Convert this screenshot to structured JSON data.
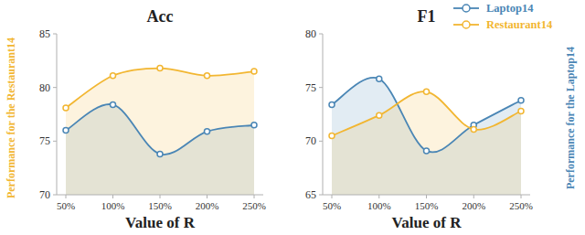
{
  "chart_data": [
    {
      "type": "line",
      "title": "Acc",
      "x_label": "Value of R",
      "y_label": "Performance for the Restaurant14",
      "categories": [
        "50%",
        "100%",
        "150%",
        "200%",
        "250%"
      ],
      "series": [
        {
          "name": "Laptop14",
          "color": "#4a86b5",
          "marker": "circle",
          "values": [
            76.0,
            78.4,
            73.8,
            75.9,
            76.5
          ]
        },
        {
          "name": "Restaurant14",
          "color": "#f2b631",
          "marker": "circle",
          "values": [
            78.1,
            81.1,
            81.8,
            81.1,
            81.5
          ]
        }
      ],
      "ylim": [
        70,
        85
      ],
      "yticks": [
        70,
        75,
        80,
        85
      ],
      "grid": false
    },
    {
      "type": "line",
      "title": "F1",
      "x_label": "Value of R",
      "y_label": "Performance for the Laptop14",
      "categories": [
        "50%",
        "100%",
        "150%",
        "200%",
        "250%"
      ],
      "series": [
        {
          "name": "Laptop14",
          "color": "#4a86b5",
          "marker": "circle",
          "values": [
            73.4,
            75.8,
            69.1,
            71.5,
            73.8
          ]
        },
        {
          "name": "Restaurant14",
          "color": "#f2b631",
          "marker": "circle",
          "values": [
            70.5,
            72.4,
            74.6,
            71.1,
            72.8
          ]
        }
      ],
      "ylim": [
        65,
        80
      ],
      "yticks": [
        65,
        70,
        75,
        80
      ],
      "grid": false,
      "legend": "upper right"
    }
  ]
}
